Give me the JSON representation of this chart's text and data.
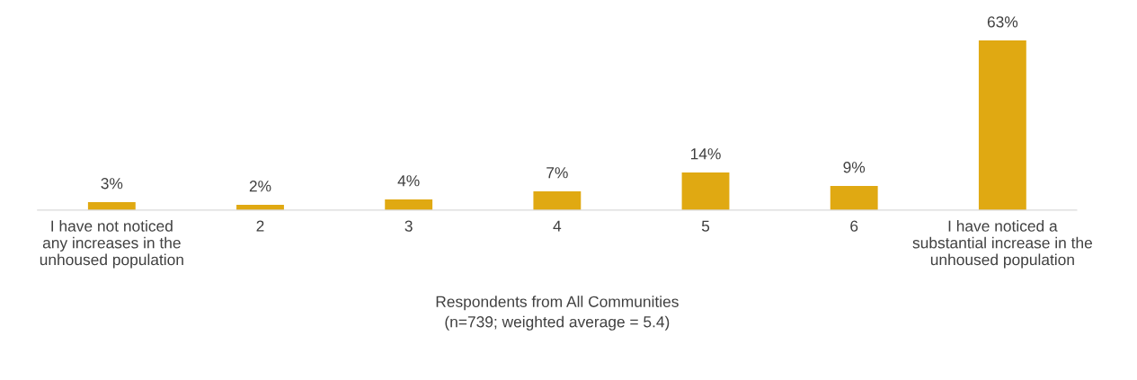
{
  "chart_data": {
    "type": "bar",
    "xlabel": "Respondents from All Communities\n(n=739; weighted average = 5.4)",
    "categories": [
      "I have not noticed\nany increases in the\nunhoused population",
      "2",
      "3",
      "4",
      "5",
      "6",
      "I have noticed a\nsubstantial increase in the\nunhoused population"
    ],
    "values": [
      3,
      2,
      4,
      7,
      14,
      9,
      63
    ],
    "value_labels": [
      "3%",
      "2%",
      "4%",
      "7%",
      "14%",
      "9%",
      "63%"
    ],
    "color": "#e0a912",
    "tick_labels": "x",
    "grid": false,
    "legend": false
  }
}
